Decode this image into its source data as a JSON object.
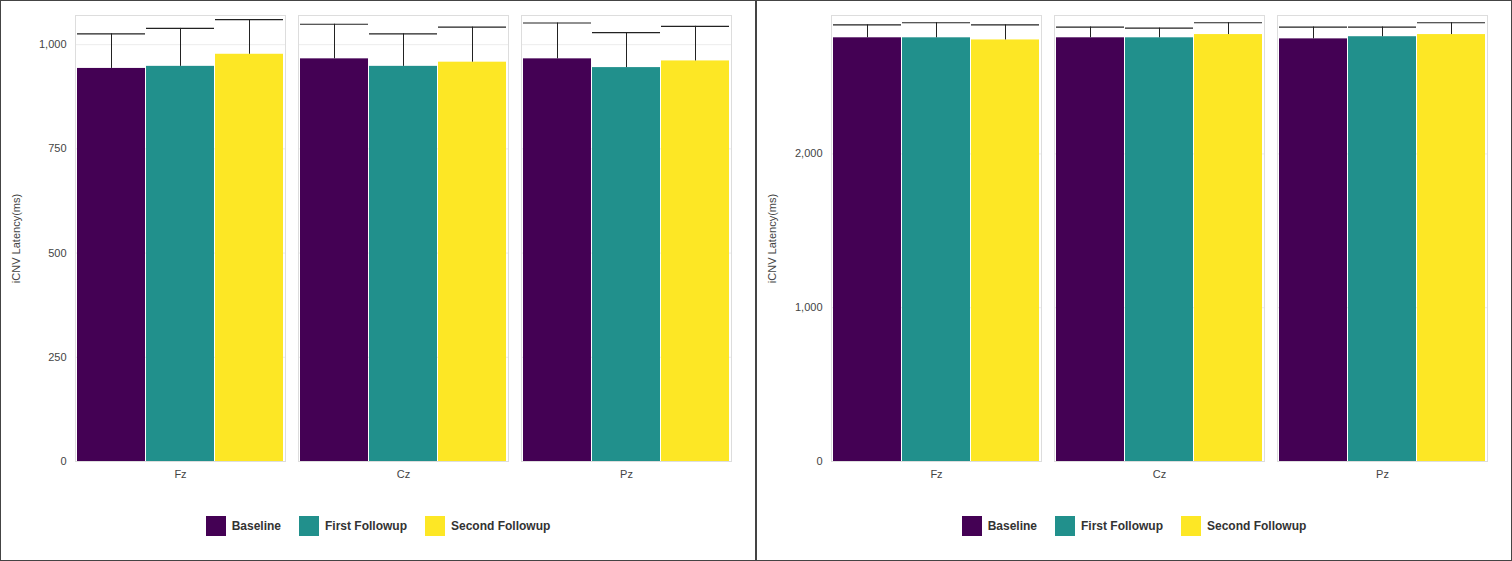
{
  "chart_data": [
    {
      "type": "bar",
      "y_label": "iCNV Latency(ms)",
      "categories": [
        "Fz",
        "Cz",
        "Pz"
      ],
      "series": [
        {
          "name": "Baseline",
          "color": "#440154",
          "values": [
            943,
            966,
            966
          ],
          "errors": [
            83,
            83,
            86
          ]
        },
        {
          "name": "First Followup",
          "color": "#21908c",
          "values": [
            948,
            948,
            945
          ],
          "errors": [
            91,
            78,
            84
          ]
        },
        {
          "name": "Second Followup",
          "color": "#fde725",
          "values": [
            977,
            958,
            961
          ],
          "errors": [
            83,
            84,
            83
          ]
        }
      ],
      "ylim": [
        0,
        1070
      ],
      "yticks": [
        0,
        250,
        500,
        750,
        1000
      ],
      "grid": true,
      "legend": "bottom"
    },
    {
      "type": "bar",
      "y_label": "iCNV Latency(ms)",
      "categories": [
        "Fz",
        "Cz",
        "Pz"
      ],
      "series": [
        {
          "name": "Baseline",
          "color": "#440154",
          "values": [
            2755,
            2755,
            2748
          ],
          "errors": [
            84,
            70,
            77
          ]
        },
        {
          "name": "First Followup",
          "color": "#21908c",
          "values": [
            2755,
            2755,
            2762
          ],
          "errors": [
            98,
            63,
            63
          ]
        },
        {
          "name": "Second Followup",
          "color": "#fde725",
          "values": [
            2741,
            2776,
            2776
          ],
          "errors": [
            98,
            77,
            77
          ]
        }
      ],
      "ylim": [
        0,
        2900
      ],
      "yticks": [
        0,
        1000,
        2000
      ],
      "grid": true,
      "legend": "bottom"
    }
  ]
}
